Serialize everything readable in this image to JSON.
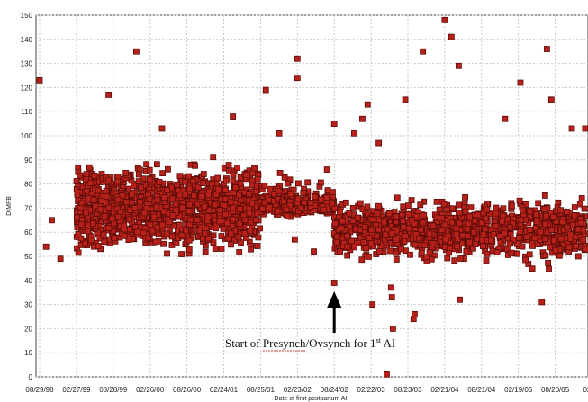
{
  "chart_data": {
    "type": "scatter",
    "ylabel": "DIMFB",
    "xlabel": "Date of first postpartum AI",
    "ylim": [
      0,
      150
    ],
    "yticks": [
      0,
      10,
      20,
      30,
      40,
      50,
      60,
      70,
      80,
      90,
      100,
      110,
      120,
      130,
      140,
      150
    ],
    "xticks": [
      "08/29/98",
      "02/27/99",
      "08/28/99",
      "02/26/00",
      "08/26/00",
      "02/24/01",
      "08/25/01",
      "02/23/02",
      "08/24/02",
      "02/22/03",
      "08/23/03",
      "02/21/04",
      "08/21/04",
      "02/19/05",
      "08/20/05",
      "02/18"
    ],
    "grid": true,
    "marker_color": "#b8211a",
    "marker_edge": "#5a0c08",
    "clusters": [
      {
        "x_range": [
          "02/27/99",
          "08/25/01"
        ],
        "y_range": [
          38,
          100
        ],
        "dense_y_range": [
          45,
          95
        ]
      },
      {
        "x_range": [
          "08/25/01",
          "08/24/02"
        ],
        "y_range": [
          60,
          90
        ],
        "dense_y_range": [
          65,
          78
        ]
      },
      {
        "x_range": [
          "08/24/02",
          "02/18"
        ],
        "y_range": [
          38,
          80
        ],
        "dense_y_range": [
          45,
          78
        ]
      }
    ],
    "outliers": [
      {
        "x": "08/29/98",
        "y": 123
      },
      {
        "x": "09/30/98",
        "y": 54
      },
      {
        "x": "10/28/98",
        "y": 65
      },
      {
        "x": "12/10/98",
        "y": 49
      },
      {
        "x": "08/05/99",
        "y": 117
      },
      {
        "x": "12/20/99",
        "y": 135
      },
      {
        "x": "04/25/00",
        "y": 103
      },
      {
        "x": "04/10/01",
        "y": 108
      },
      {
        "x": "09/20/01",
        "y": 119
      },
      {
        "x": "11/25/01",
        "y": 101
      },
      {
        "x": "02/23/02",
        "y": 132
      },
      {
        "x": "02/23/02",
        "y": 124
      },
      {
        "x": "08/24/02",
        "y": 105
      },
      {
        "x": "12/01/02",
        "y": 101
      },
      {
        "x": "01/10/03",
        "y": 107
      },
      {
        "x": "02/05/03",
        "y": 113
      },
      {
        "x": "04/01/03",
        "y": 97
      },
      {
        "x": "05/10/03",
        "y": 1
      },
      {
        "x": "08/10/03",
        "y": 115
      },
      {
        "x": "11/05/03",
        "y": 135
      },
      {
        "x": "02/21/04",
        "y": 148
      },
      {
        "x": "03/25/04",
        "y": 141
      },
      {
        "x": "04/30/04",
        "y": 129
      },
      {
        "x": "12/15/04",
        "y": 107
      },
      {
        "x": "03/01/05",
        "y": 122
      },
      {
        "x": "07/10/05",
        "y": 136
      },
      {
        "x": "08/01/05",
        "y": 115
      },
      {
        "x": "11/10/05",
        "y": 103
      },
      {
        "x": "01/15/06",
        "y": 103
      },
      {
        "x": "06/01/03",
        "y": 37
      },
      {
        "x": "06/05/03",
        "y": 33
      },
      {
        "x": "06/10/03",
        "y": 20
      },
      {
        "x": "09/20/03",
        "y": 24
      },
      {
        "x": "09/25/03",
        "y": 26
      },
      {
        "x": "08/24/02",
        "y": 39
      },
      {
        "x": "05/05/04",
        "y": 32
      },
      {
        "x": "03/01/03",
        "y": 30
      },
      {
        "x": "06/15/05",
        "y": 31
      },
      {
        "x": "02/10/02",
        "y": 57
      },
      {
        "x": "05/15/02",
        "y": 52
      }
    ],
    "annotation": {
      "text_before": "Start of ",
      "underlined": "Presynch",
      "text_after": "/Ovsynch  for 1",
      "superscript": "st",
      "text_end": " AI",
      "arrow_x": "08/24/02"
    }
  }
}
